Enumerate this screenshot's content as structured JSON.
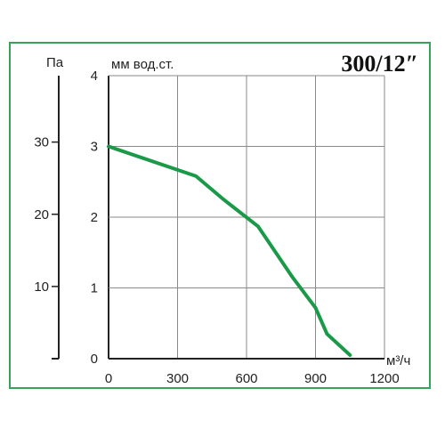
{
  "badge": "300/12″",
  "chart_data": {
    "type": "line",
    "title": "",
    "xlabel": "м³/ч",
    "ylabel": "мм вод.ст.",
    "secondary_ylabel": "Па",
    "xlim": [
      0,
      1200
    ],
    "ylim": [
      0,
      4
    ],
    "secondary_ylim": [
      0,
      39.2
    ],
    "xticks": [
      "0",
      "300",
      "600",
      "900",
      "1200"
    ],
    "yticks": [
      "0",
      "1",
      "2",
      "3",
      "4"
    ],
    "secondary_yticks": [
      "10",
      "20",
      "30"
    ],
    "grid": true,
    "line_color": "#1a9a48",
    "series": [
      {
        "x": [
          0,
          380,
          500,
          650,
          800,
          900,
          950,
          1050
        ],
        "y": [
          3.0,
          2.58,
          2.25,
          1.87,
          1.15,
          0.72,
          0.35,
          0.05
        ]
      }
    ]
  }
}
